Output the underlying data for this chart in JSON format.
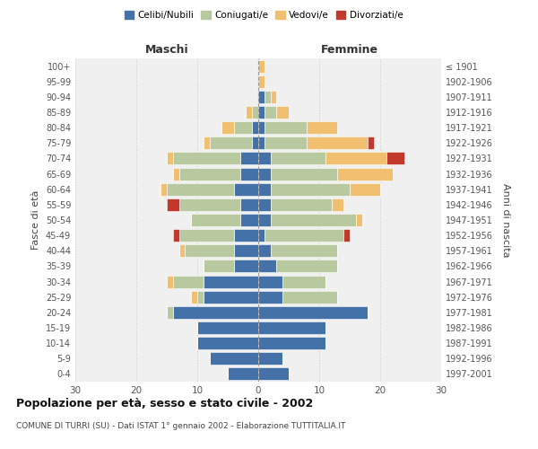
{
  "age_groups": [
    "0-4",
    "5-9",
    "10-14",
    "15-19",
    "20-24",
    "25-29",
    "30-34",
    "35-39",
    "40-44",
    "45-49",
    "50-54",
    "55-59",
    "60-64",
    "65-69",
    "70-74",
    "75-79",
    "80-84",
    "85-89",
    "90-94",
    "95-99",
    "100+"
  ],
  "birth_years": [
    "1997-2001",
    "1992-1996",
    "1987-1991",
    "1982-1986",
    "1977-1981",
    "1972-1976",
    "1967-1971",
    "1962-1966",
    "1957-1961",
    "1952-1956",
    "1947-1951",
    "1942-1946",
    "1937-1941",
    "1932-1936",
    "1927-1931",
    "1922-1926",
    "1917-1921",
    "1912-1916",
    "1907-1911",
    "1902-1906",
    "≤ 1901"
  ],
  "maschi": {
    "celibi": [
      5,
      8,
      10,
      10,
      14,
      9,
      9,
      4,
      4,
      4,
      3,
      3,
      4,
      3,
      3,
      1,
      1,
      0,
      0,
      0,
      0
    ],
    "coniugati": [
      0,
      0,
      0,
      0,
      1,
      1,
      5,
      5,
      8,
      9,
      8,
      10,
      11,
      10,
      11,
      7,
      3,
      1,
      0,
      0,
      0
    ],
    "vedovi": [
      0,
      0,
      0,
      0,
      0,
      1,
      1,
      0,
      1,
      0,
      0,
      0,
      1,
      1,
      1,
      1,
      2,
      1,
      0,
      0,
      0
    ],
    "divorziati": [
      0,
      0,
      0,
      0,
      0,
      0,
      0,
      0,
      0,
      1,
      0,
      2,
      0,
      0,
      0,
      0,
      0,
      0,
      0,
      0,
      0
    ]
  },
  "femmine": {
    "nubili": [
      5,
      4,
      11,
      11,
      18,
      4,
      4,
      3,
      2,
      1,
      2,
      2,
      2,
      2,
      2,
      1,
      1,
      1,
      1,
      0,
      0
    ],
    "coniugate": [
      0,
      0,
      0,
      0,
      0,
      9,
      7,
      10,
      11,
      13,
      14,
      10,
      13,
      11,
      9,
      7,
      7,
      2,
      1,
      0,
      0
    ],
    "vedove": [
      0,
      0,
      0,
      0,
      0,
      0,
      0,
      0,
      0,
      0,
      1,
      2,
      5,
      9,
      10,
      10,
      5,
      2,
      1,
      1,
      1
    ],
    "divorziate": [
      0,
      0,
      0,
      0,
      0,
      0,
      0,
      0,
      0,
      1,
      0,
      0,
      0,
      0,
      3,
      1,
      0,
      0,
      0,
      0,
      0
    ]
  },
  "colors": {
    "celibi": "#4472a8",
    "coniugati": "#b8c9a0",
    "vedovi": "#f0c070",
    "divorziati": "#c0392b"
  },
  "xlim": 30,
  "title": "Popolazione per età, sesso e stato civile - 2002",
  "subtitle": "COMUNE DI TURRI (SU) - Dati ISTAT 1° gennaio 2002 - Elaborazione TUTTITALIA.IT",
  "ylabel_left": "Fasce di età",
  "ylabel_right": "Anni di nascita",
  "xlabel_maschi": "Maschi",
  "xlabel_femmine": "Femmine",
  "background_color": "#f0f0f0"
}
